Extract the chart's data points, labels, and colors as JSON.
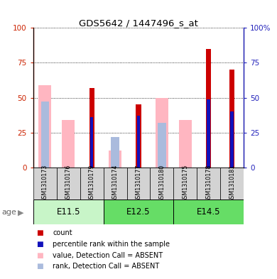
{
  "title": "GDS5642 / 1447496_s_at",
  "samples": [
    "GSM1310173",
    "GSM1310176",
    "GSM1310179",
    "GSM1310174",
    "GSM1310177",
    "GSM1310180",
    "GSM1310175",
    "GSM1310178",
    "GSM1310181"
  ],
  "groups": [
    {
      "label": "E11.5",
      "indices": [
        0,
        1,
        2
      ]
    },
    {
      "label": "E12.5",
      "indices": [
        3,
        4,
        5
      ]
    },
    {
      "label": "E14.5",
      "indices": [
        6,
        7,
        8
      ]
    }
  ],
  "count_values": [
    0,
    0,
    57,
    0,
    45,
    0,
    0,
    85,
    70
  ],
  "percentile_values": [
    0,
    0,
    36,
    0,
    37,
    0,
    0,
    49,
    40
  ],
  "absent_value_values": [
    59,
    34,
    0,
    12,
    0,
    50,
    34,
    0,
    0
  ],
  "absent_rank_values": [
    47,
    0,
    0,
    22,
    0,
    32,
    0,
    0,
    0
  ],
  "count_color": "#CC0000",
  "percentile_color": "#1111BB",
  "absent_value_color": "#FFB6C1",
  "absent_rank_color": "#AABBDD",
  "left_axis_color": "#CC2200",
  "right_axis_color": "#2222BB",
  "grid_color": "black",
  "group_colors": [
    "#C8F5C8",
    "#66DD66",
    "#66DD66"
  ],
  "legend_items": [
    {
      "label": "count",
      "color": "#CC0000"
    },
    {
      "label": "percentile rank within the sample",
      "color": "#1111BB"
    },
    {
      "label": "value, Detection Call = ABSENT",
      "color": "#FFB6C1"
    },
    {
      "label": "rank, Detection Call = ABSENT",
      "color": "#AABBDD"
    }
  ]
}
